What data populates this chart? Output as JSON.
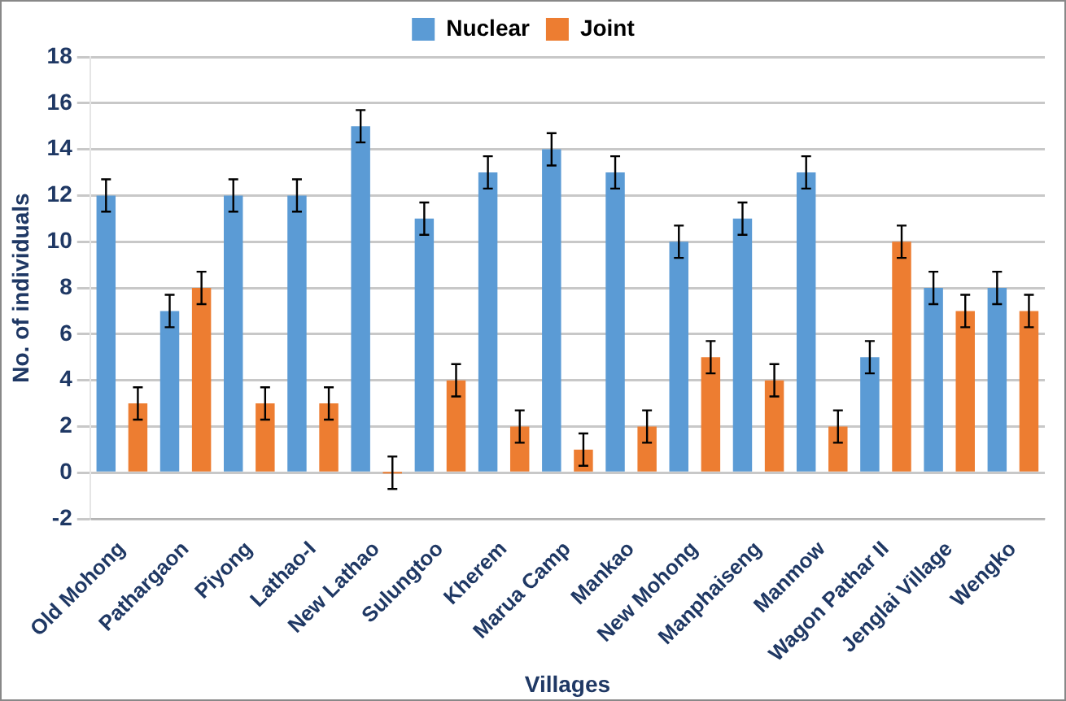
{
  "chart_data": {
    "type": "bar",
    "xlabel": "Villages",
    "ylabel": "No. of individuals",
    "categories": [
      "Old Mohong",
      "Pathargaon",
      "Piyong",
      "Lathao-I",
      "New Lathao",
      "Sulungtoo",
      "Kherem",
      "Marua Camp",
      "Mankao",
      "New Mohong",
      "Manphaiseng",
      "Manmow",
      "Wagon Pathar II",
      "Jenglai Village",
      "Wengko"
    ],
    "series": [
      {
        "name": "Nuclear",
        "color": "#5b9bd5",
        "values": [
          12,
          7,
          12,
          12,
          15,
          11,
          13,
          14,
          13,
          10,
          11,
          13,
          5,
          8,
          8
        ],
        "errors": [
          0.7,
          0.7,
          0.7,
          0.7,
          0.7,
          0.7,
          0.7,
          0.7,
          0.7,
          0.7,
          0.7,
          0.7,
          0.7,
          0.7,
          0.7
        ]
      },
      {
        "name": "Joint",
        "color": "#ed7d31",
        "values": [
          3,
          8,
          3,
          3,
          0,
          4,
          2,
          1,
          2,
          5,
          4,
          2,
          10,
          7,
          7
        ],
        "errors": [
          0.7,
          0.7,
          0.7,
          0.7,
          0.7,
          0.7,
          0.7,
          0.7,
          0.7,
          0.7,
          0.7,
          0.7,
          0.7,
          0.7,
          0.7
        ]
      }
    ],
    "ylim": [
      -2,
      18
    ],
    "yticks": [
      -2,
      0,
      2,
      4,
      6,
      8,
      10,
      12,
      14,
      16,
      18
    ],
    "grid": "y",
    "legend": "top"
  }
}
